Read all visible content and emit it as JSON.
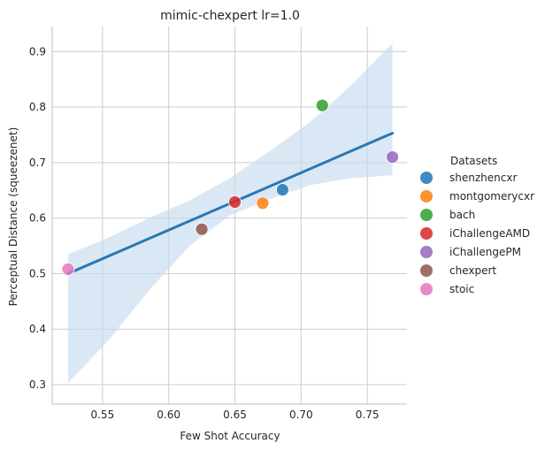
{
  "chart_data": {
    "type": "scatter",
    "title": "mimic-chexpert lr=1.0",
    "xlabel": "Few Shot Accuracy",
    "ylabel": "Perceptual Distance (squeezenet)",
    "xlim": [
      0.512,
      0.78
    ],
    "ylim": [
      0.265,
      0.945
    ],
    "xticks": [
      "0.55",
      "0.60",
      "0.65",
      "0.70",
      "0.75"
    ],
    "yticks": [
      "0.3",
      "0.4",
      "0.5",
      "0.6",
      "0.7",
      "0.8",
      "0.9"
    ],
    "grid": true,
    "legend": {
      "title": "Datasets",
      "placement": "right"
    },
    "series": [
      {
        "name": "shenzhencxr",
        "color": "#1f77b4",
        "x": 0.686,
        "y": 0.651
      },
      {
        "name": "montgomerycxr",
        "color": "#ff7f0e",
        "x": 0.671,
        "y": 0.627
      },
      {
        "name": "bach",
        "color": "#2ca02c",
        "x": 0.716,
        "y": 0.803
      },
      {
        "name": "iChallengeAMD",
        "color": "#d62728",
        "x": 0.65,
        "y": 0.629
      },
      {
        "name": "iChallengePM",
        "color": "#9467bd",
        "x": 0.769,
        "y": 0.71
      },
      {
        "name": "chexpert",
        "color": "#8c564b",
        "x": 0.625,
        "y": 0.58
      },
      {
        "name": "stoic",
        "color": "#e377c2",
        "x": 0.524,
        "y": 0.508
      }
    ],
    "regression": {
      "color": "#2878b5",
      "band_color": "#c6dbef",
      "x_range": [
        0.524,
        0.769
      ],
      "y_start": 0.5,
      "y_end": 0.753,
      "band_lower": [
        0.303,
        0.38,
        0.47,
        0.55,
        0.605,
        0.635,
        0.66,
        0.672,
        0.677
      ],
      "band_upper": [
        0.535,
        0.565,
        0.6,
        0.632,
        0.672,
        0.722,
        0.775,
        0.84,
        0.915
      ]
    }
  }
}
